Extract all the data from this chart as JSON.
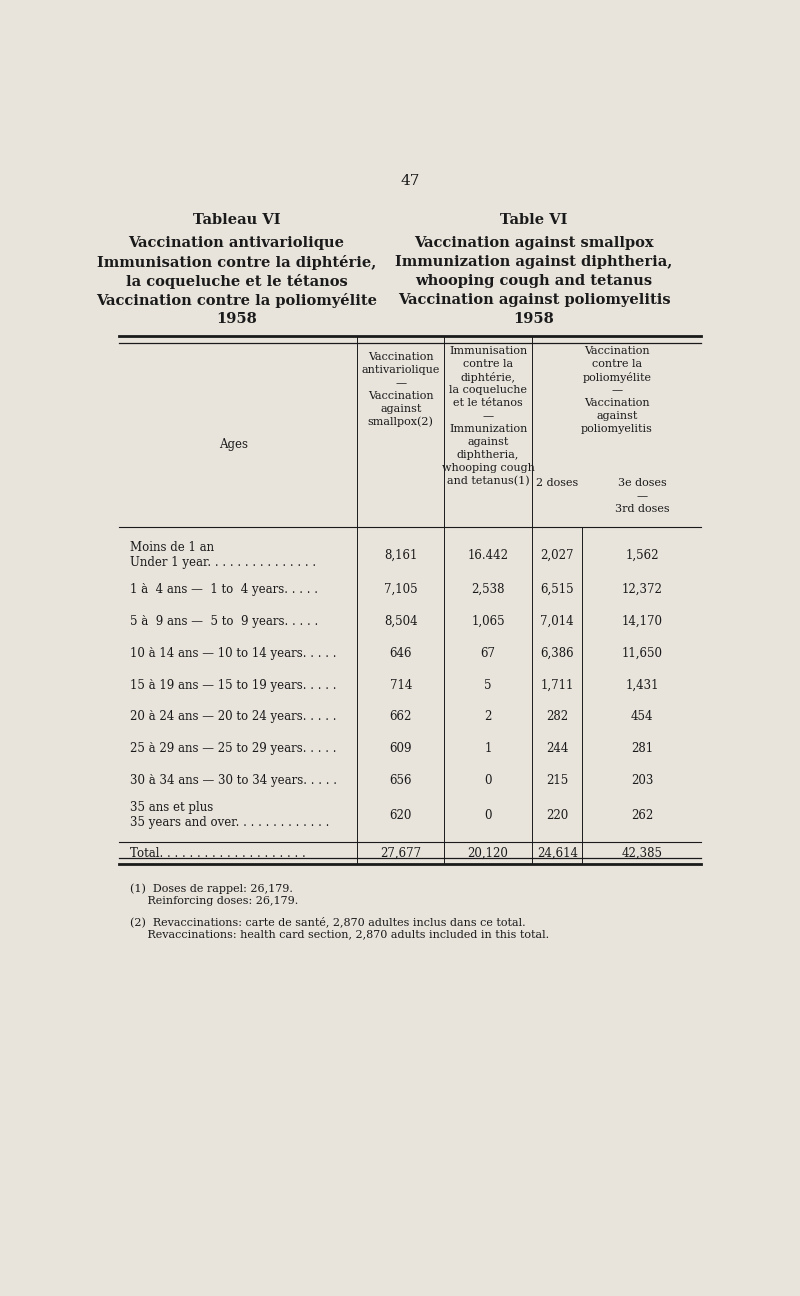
{
  "page_number": "47",
  "title_left_line1": "Tableau VI",
  "title_left_line2": "Vaccination antivariolique",
  "title_left_line3": "Immunisation contre la diphtérie,",
  "title_left_line4": "la coqueluche et le tétanos",
  "title_left_line5": "Vaccination contre la poliomyélite",
  "title_left_line6": "1958",
  "title_right_line1": "Table VI",
  "title_right_line2": "Vaccination against smallpox",
  "title_right_line3": "Immunization against diphtheria,",
  "title_right_line4": "whooping cough and tetanus",
  "title_right_line5": "Vaccination against poliomyelitis",
  "title_right_line6": "1958",
  "col_header_col1_line1": "Vaccination",
  "col_header_col1_line2": "antivariolique",
  "col_header_col1_line3": "—",
  "col_header_col1_line4": "Vaccination",
  "col_header_col1_line5": "against",
  "col_header_col1_line6": "smallpox(2)",
  "col_header_col2_line1": "Immunisation",
  "col_header_col2_line2": "contre la",
  "col_header_col2_line3": "diphtérie,",
  "col_header_col2_line4": "la coqueluche",
  "col_header_col2_line5": "et le tétanos",
  "col_header_col2_line6": "—",
  "col_header_col2_line7": "Immunization",
  "col_header_col2_line8": "against",
  "col_header_col2_line9": "diphtheria,",
  "col_header_col2_line10": "whooping cough",
  "col_header_col2_line11": "and tetanus(1)",
  "col_header_col3_line1": "Vaccination",
  "col_header_col3_line2": "contre la",
  "col_header_col3_line3": "poliomyélite",
  "col_header_col3_line4": "—",
  "col_header_col3_line5": "Vaccination",
  "col_header_col3_line6": "against",
  "col_header_col3_line7": "poliomyelitis",
  "col_header_sub1": "2 doses",
  "col_header_sub2": "3e doses",
  "col_header_sub2b": "—",
  "col_header_sub2c": "3rd doses",
  "ages_label": "Ages",
  "rows": [
    {
      "label_fr": "Moins de 1 an",
      "label_en": "Under 1 year. . . . . . . . . . . . . . .",
      "col1": "8,161",
      "col2": "16.442",
      "col3a": "2,027",
      "col3b": "1,562",
      "two_line": true
    },
    {
      "label_fr": "1 à  4 ans —  1 to  4 years. . . . .",
      "label_en": "",
      "col1": "7,105",
      "col2": "2,538",
      "col3a": "6,515",
      "col3b": "12,372",
      "two_line": false
    },
    {
      "label_fr": "5 à  9 ans —  5 to  9 years. . . . .",
      "label_en": "",
      "col1": "8,504",
      "col2": "1,065",
      "col3a": "7,014",
      "col3b": "14,170",
      "two_line": false
    },
    {
      "label_fr": "10 à 14 ans — 10 to 14 years. . . . .",
      "label_en": "",
      "col1": "646",
      "col2": "67",
      "col3a": "6,386",
      "col3b": "11,650",
      "two_line": false
    },
    {
      "label_fr": "15 à 19 ans — 15 to 19 years. . . . .",
      "label_en": "",
      "col1": "714",
      "col2": "5",
      "col3a": "1,711",
      "col3b": "1,431",
      "two_line": false
    },
    {
      "label_fr": "20 à 24 ans — 20 to 24 years. . . . .",
      "label_en": "",
      "col1": "662",
      "col2": "2",
      "col3a": "282",
      "col3b": "454",
      "two_line": false
    },
    {
      "label_fr": "25 à 29 ans — 25 to 29 years. . . . .",
      "label_en": "",
      "col1": "609",
      "col2": "1",
      "col3a": "244",
      "col3b": "281",
      "two_line": false
    },
    {
      "label_fr": "30 à 34 ans — 30 to 34 years. . . . .",
      "label_en": "",
      "col1": "656",
      "col2": "0",
      "col3a": "215",
      "col3b": "203",
      "two_line": false
    },
    {
      "label_fr": "35 ans et plus",
      "label_en": "35 years and over. . . . . . . . . . . . .",
      "col1": "620",
      "col2": "0",
      "col3a": "220",
      "col3b": "262",
      "two_line": true
    }
  ],
  "total_label": "Total. . . . . . . . . . . . . . . . . . . .",
  "total_col1": "27,677",
  "total_col2": "20,120",
  "total_col3a": "24,614",
  "total_col3b": "42,385",
  "footnote1_fr": "(1)  Doses de rappel: 26,179.",
  "footnote1_en": "     Reinforcing doses: 26,179.",
  "footnote2_fr": "(2)  Revaccinations: carte de santé, 2,870 adultes inclus dans ce total.",
  "footnote2_en": "     Revaccinations: health card section, 2,870 adults included in this total.",
  "bg_color": "#e8e4dc",
  "text_color": "#1a1a1a",
  "font_size_title": 10.5,
  "font_size_body": 8.5,
  "font_size_page": 11
}
